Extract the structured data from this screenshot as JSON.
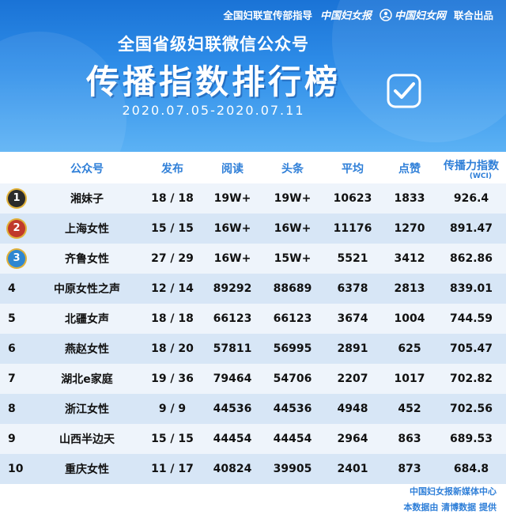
{
  "header": {
    "guidance_text": "全国妇联宣传部指导",
    "brand1": "中国妇女报",
    "brand2": "中国妇女网",
    "joint_text": "联合出品",
    "subtitle": "全国省级妇联微信公众号",
    "title": "传播指数排行榜",
    "date_range": "2020.07.05-2020.07.11"
  },
  "table": {
    "headers": {
      "account": "公众号",
      "posts": "发布",
      "reads": "阅读",
      "headline": "头条",
      "average": "平均",
      "likes": "点赞",
      "index": "传播力指数",
      "index_sub": "(WCI)"
    },
    "rows": [
      {
        "rank": "1",
        "account": "湘妹子",
        "posts": "18 / 18",
        "reads": "19W+",
        "headline": "19W+",
        "average": "10623",
        "likes": "1833",
        "index": "926.4"
      },
      {
        "rank": "2",
        "account": "上海女性",
        "posts": "15 / 15",
        "reads": "16W+",
        "headline": "16W+",
        "average": "11176",
        "likes": "1270",
        "index": "891.47"
      },
      {
        "rank": "3",
        "account": "齐鲁女性",
        "posts": "27 / 29",
        "reads": "16W+",
        "headline": "15W+",
        "average": "5521",
        "likes": "3412",
        "index": "862.86"
      },
      {
        "rank": "4",
        "account": "中原女性之声",
        "posts": "12 / 14",
        "reads": "89292",
        "headline": "88689",
        "average": "6378",
        "likes": "2813",
        "index": "839.01"
      },
      {
        "rank": "5",
        "account": "北疆女声",
        "posts": "18 / 18",
        "reads": "66123",
        "headline": "66123",
        "average": "3674",
        "likes": "1004",
        "index": "744.59"
      },
      {
        "rank": "6",
        "account": "燕赵女性",
        "posts": "18 / 20",
        "reads": "57811",
        "headline": "56995",
        "average": "2891",
        "likes": "625",
        "index": "705.47"
      },
      {
        "rank": "7",
        "account": "湖北e家庭",
        "posts": "19 / 36",
        "reads": "79464",
        "headline": "54706",
        "average": "2207",
        "likes": "1017",
        "index": "702.82"
      },
      {
        "rank": "8",
        "account": "浙江女性",
        "posts": "9 / 9",
        "reads": "44536",
        "headline": "44536",
        "average": "4948",
        "likes": "452",
        "index": "702.56"
      },
      {
        "rank": "9",
        "account": "山西半边天",
        "posts": "15 / 15",
        "reads": "44454",
        "headline": "44454",
        "average": "2964",
        "likes": "863",
        "index": "689.53"
      },
      {
        "rank": "10",
        "account": "重庆女性",
        "posts": "11 / 17",
        "reads": "40824",
        "headline": "39905",
        "average": "2401",
        "likes": "873",
        "index": "684.8"
      }
    ]
  },
  "footer": {
    "line1": "中国妇女报新媒体中心",
    "line2": "本数据由 清博数据 提供"
  },
  "colors": {
    "header_blue": "#2f8ee9",
    "header_text": "#2f7fd8",
    "row_light": "#eef4fb",
    "row_dark": "#d7e6f6"
  }
}
